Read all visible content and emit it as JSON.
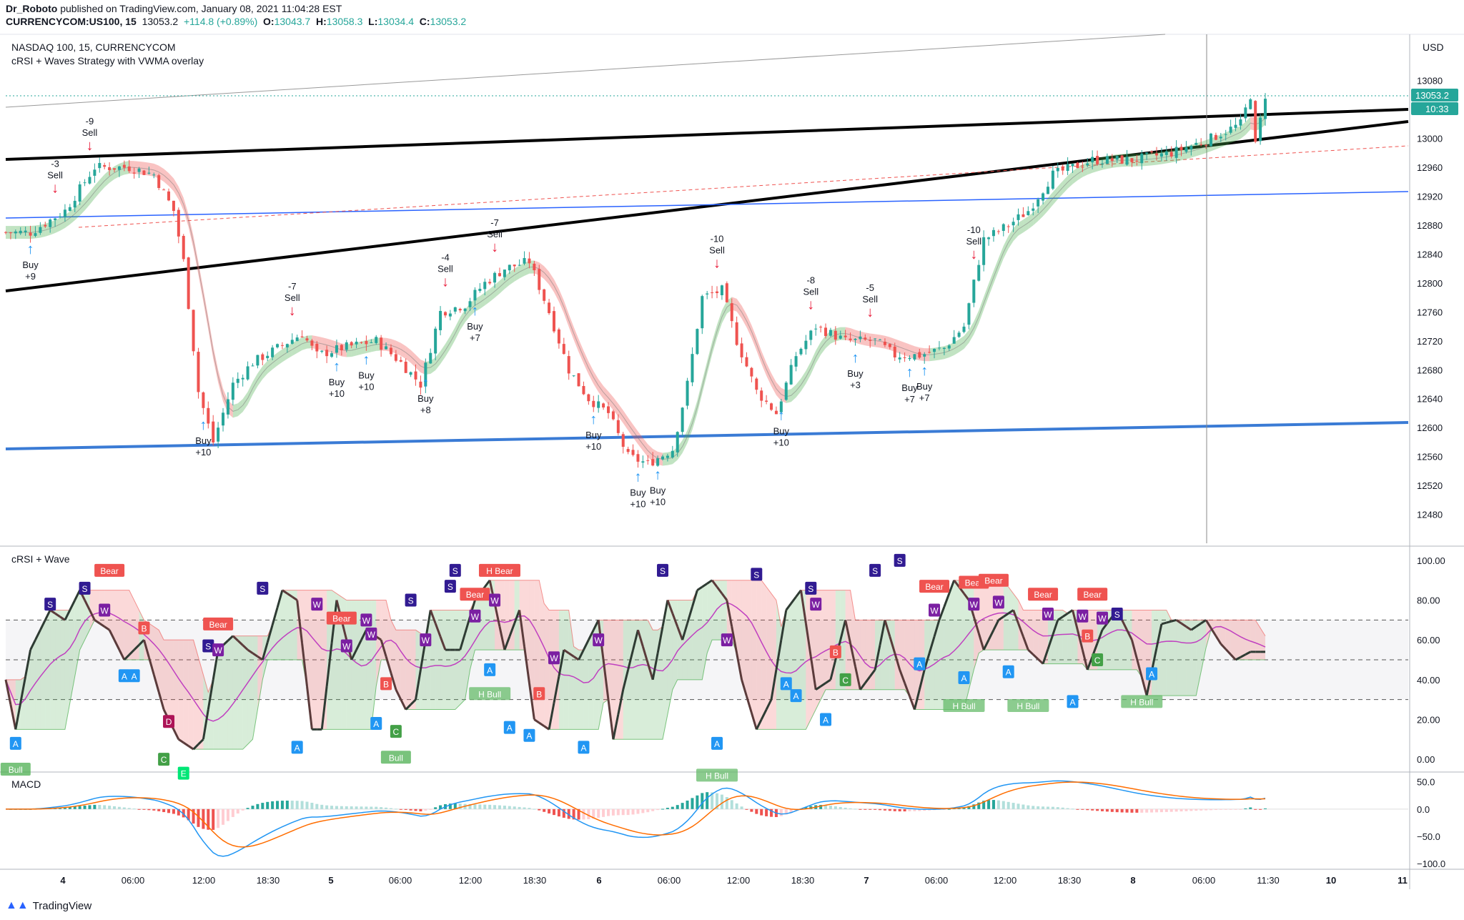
{
  "header": {
    "line1_user": "Dr_Roboto",
    "line1_rest": " published on TradingView.com, January 08, 2021 11:04:28 EST",
    "symbol": "CURRENCYCOM:US100, 15",
    "price": "13053.2",
    "change": "+114.8 (+0.89%)",
    "o_label": "O:",
    "o": "13043.7",
    "h_label": "H:",
    "h": "13058.3",
    "l_label": "L:",
    "l": "13034.4",
    "c_label": "C:",
    "c": "13053.2"
  },
  "main_pane": {
    "title": "NASDAQ 100, 15, CURRENCYCOM",
    "subtitle": "cRSI + Waves Strategy with VWMA overlay",
    "currency": "USD",
    "price_tag": "13053.2",
    "time_tag": "10:33"
  },
  "crsi_pane": {
    "title": "cRSI + Wave"
  },
  "macd_pane": {
    "title": "MACD"
  },
  "footer": {
    "brand": "TradingView"
  },
  "colors": {
    "up": "#26a69a",
    "down": "#ef5350",
    "blue": "#2962ff",
    "crsi": "#333333",
    "ma": "#c040c0"
  },
  "chart_data": [
    {
      "type": "candlestick",
      "title": "NASDAQ 100, 15, CURRENCYCOM",
      "y_ticks": [
        13080,
        13040,
        13000,
        12960,
        12920,
        12880,
        12840,
        12800,
        12760,
        12720,
        12680,
        12640,
        12600,
        12560,
        12520,
        12480
      ],
      "ylim": [
        12440,
        13140
      ],
      "x_ticks": [
        "4",
        "06:00",
        "12:00",
        "18:30",
        "5",
        "06:00",
        "12:00",
        "18:30",
        "6",
        "06:00",
        "12:00",
        "18:30",
        "7",
        "06:00",
        "12:00",
        "18:30",
        "8",
        "06:00",
        "11:30",
        "10",
        "11"
      ],
      "close_path": [
        [
          0,
          12870
        ],
        [
          5,
          12870
        ],
        [
          12,
          12900
        ],
        [
          18,
          12960
        ],
        [
          25,
          12960
        ],
        [
          30,
          12950
        ],
        [
          34,
          12900
        ],
        [
          36,
          12830
        ],
        [
          39,
          12650
        ],
        [
          42,
          12580
        ],
        [
          46,
          12660
        ],
        [
          50,
          12690
        ],
        [
          55,
          12710
        ],
        [
          60,
          12730
        ],
        [
          63,
          12700
        ],
        [
          68,
          12710
        ],
        [
          75,
          12720
        ],
        [
          80,
          12690
        ],
        [
          84,
          12660
        ],
        [
          88,
          12760
        ],
        [
          93,
          12770
        ],
        [
          97,
          12800
        ],
        [
          101,
          12820
        ],
        [
          106,
          12830
        ],
        [
          110,
          12760
        ],
        [
          114,
          12680
        ],
        [
          118,
          12640
        ],
        [
          122,
          12620
        ],
        [
          126,
          12560
        ],
        [
          130,
          12550
        ],
        [
          135,
          12570
        ],
        [
          138,
          12660
        ],
        [
          141,
          12780
        ],
        [
          145,
          12790
        ],
        [
          148,
          12720
        ],
        [
          152,
          12650
        ],
        [
          156,
          12620
        ],
        [
          160,
          12700
        ],
        [
          164,
          12740
        ],
        [
          170,
          12720
        ],
        [
          176,
          12720
        ],
        [
          180,
          12700
        ],
        [
          185,
          12700
        ],
        [
          190,
          12710
        ],
        [
          194,
          12740
        ],
        [
          198,
          12860
        ],
        [
          203,
          12880
        ],
        [
          207,
          12900
        ],
        [
          212,
          12950
        ],
        [
          220,
          12970
        ],
        [
          228,
          12970
        ],
        [
          236,
          12980
        ],
        [
          244,
          13000
        ],
        [
          250,
          13020
        ],
        [
          252,
          13060
        ],
        [
          253,
          12990
        ],
        [
          255,
          13060
        ]
      ],
      "signals": [
        {
          "label": "Buy",
          "value": "+9",
          "x": 5,
          "kind": "buy"
        },
        {
          "label": "Sell",
          "value": "-3",
          "x": 10,
          "kind": "sell"
        },
        {
          "label": "Sell",
          "value": "-9",
          "x": 17,
          "kind": "sell"
        },
        {
          "label": "Buy",
          "value": "+10",
          "x": 40,
          "kind": "buy"
        },
        {
          "label": "Sell",
          "value": "-7",
          "x": 58,
          "kind": "sell"
        },
        {
          "label": "Buy",
          "value": "+10",
          "x": 67,
          "kind": "buy"
        },
        {
          "label": "Buy",
          "value": "+10",
          "x": 73,
          "kind": "buy"
        },
        {
          "label": "Buy",
          "value": "+8",
          "x": 85,
          "kind": "buy"
        },
        {
          "label": "Sell",
          "value": "-4",
          "x": 89,
          "kind": "sell"
        },
        {
          "label": "Buy",
          "value": "+7",
          "x": 95,
          "kind": "buy"
        },
        {
          "label": "Sell",
          "value": "-7",
          "x": 99,
          "kind": "sell"
        },
        {
          "label": "Buy",
          "value": "+10",
          "x": 119,
          "kind": "buy"
        },
        {
          "label": "Buy",
          "value": "+10",
          "x": 128,
          "kind": "buy"
        },
        {
          "label": "Buy",
          "value": "+10",
          "x": 132,
          "kind": "buy"
        },
        {
          "label": "Sell",
          "value": "-10",
          "x": 144,
          "kind": "sell"
        },
        {
          "label": "Buy",
          "value": "+10",
          "x": 157,
          "kind": "buy"
        },
        {
          "label": "Sell",
          "value": "-8",
          "x": 163,
          "kind": "sell"
        },
        {
          "label": "Buy",
          "value": "+3",
          "x": 172,
          "kind": "buy"
        },
        {
          "label": "Sell",
          "value": "-5",
          "x": 175,
          "kind": "sell"
        },
        {
          "label": "Buy",
          "value": "+7",
          "x": 183,
          "kind": "buy"
        },
        {
          "label": "Buy",
          "value": "+7",
          "x": 186,
          "kind": "buy"
        },
        {
          "label": "Sell",
          "value": "-10",
          "x": 196,
          "kind": "sell"
        }
      ]
    },
    {
      "type": "line",
      "title": "cRSI + Wave",
      "y_ticks": [
        "100.00",
        "80.00",
        "60.00",
        "40.00",
        "20.00",
        "0.00"
      ],
      "ylim": [
        -5,
        105
      ],
      "levels": [
        70,
        50,
        30
      ],
      "crsi_path": [
        [
          0,
          40
        ],
        [
          2,
          15
        ],
        [
          5,
          55
        ],
        [
          9,
          75
        ],
        [
          12,
          70
        ],
        [
          15,
          85
        ],
        [
          18,
          70
        ],
        [
          21,
          65
        ],
        [
          24,
          50
        ],
        [
          28,
          60
        ],
        [
          32,
          25
        ],
        [
          35,
          10
        ],
        [
          38,
          5
        ],
        [
          40,
          10
        ],
        [
          43,
          55
        ],
        [
          46,
          62
        ],
        [
          49,
          55
        ],
        [
          52,
          50
        ],
        [
          56,
          85
        ],
        [
          59,
          80
        ],
        [
          62,
          15
        ],
        [
          64,
          15
        ],
        [
          67,
          80
        ],
        [
          70,
          50
        ],
        [
          73,
          65
        ],
        [
          76,
          60
        ],
        [
          79,
          35
        ],
        [
          81,
          25
        ],
        [
          83,
          30
        ],
        [
          86,
          75
        ],
        [
          89,
          55
        ],
        [
          92,
          55
        ],
        [
          95,
          80
        ],
        [
          98,
          90
        ],
        [
          101,
          55
        ],
        [
          104,
          75
        ],
        [
          107,
          20
        ],
        [
          110,
          15
        ],
        [
          113,
          55
        ],
        [
          116,
          50
        ],
        [
          120,
          70
        ],
        [
          123,
          10
        ],
        [
          125,
          35
        ],
        [
          128,
          65
        ],
        [
          131,
          40
        ],
        [
          134,
          80
        ],
        [
          137,
          60
        ],
        [
          140,
          85
        ],
        [
          143,
          90
        ],
        [
          146,
          80
        ],
        [
          149,
          40
        ],
        [
          152,
          15
        ],
        [
          155,
          30
        ],
        [
          158,
          75
        ],
        [
          161,
          85
        ],
        [
          164,
          35
        ],
        [
          167,
          40
        ],
        [
          170,
          70
        ],
        [
          173,
          35
        ],
        [
          176,
          45
        ],
        [
          178,
          70
        ],
        [
          181,
          45
        ],
        [
          184,
          25
        ],
        [
          186,
          45
        ],
        [
          189,
          70
        ],
        [
          192,
          90
        ],
        [
          195,
          80
        ],
        [
          198,
          55
        ],
        [
          201,
          70
        ],
        [
          204,
          75
        ],
        [
          207,
          55
        ],
        [
          210,
          48
        ],
        [
          213,
          70
        ],
        [
          216,
          75
        ],
        [
          219,
          45
        ],
        [
          222,
          65
        ],
        [
          225,
          75
        ],
        [
          228,
          60
        ],
        [
          231,
          32
        ],
        [
          234,
          68
        ],
        [
          237,
          70
        ],
        [
          240,
          65
        ],
        [
          243,
          70
        ],
        [
          246,
          58
        ],
        [
          249,
          50
        ],
        [
          252,
          54
        ]
      ],
      "labels": [
        {
          "text": "S",
          "x": 16,
          "y": 86
        },
        {
          "text": "Bear",
          "x": 21,
          "y": 95
        },
        {
          "text": "W",
          "x": 20,
          "y": 75
        },
        {
          "text": "S",
          "x": 9,
          "y": 78
        },
        {
          "text": "A",
          "x": 2,
          "y": 8
        },
        {
          "text": "Bull",
          "x": 2,
          "y": -5
        },
        {
          "text": "B",
          "x": 28,
          "y": 66
        },
        {
          "text": "A",
          "x": 24,
          "y": 42
        },
        {
          "text": "A",
          "x": 26,
          "y": 42
        },
        {
          "text": "D",
          "x": 33,
          "y": 19
        },
        {
          "text": "C",
          "x": 32,
          "y": 0
        },
        {
          "text": "E",
          "x": 36,
          "y": -7
        },
        {
          "text": "Bear",
          "x": 43,
          "y": 68
        },
        {
          "text": "S",
          "x": 41,
          "y": 57
        },
        {
          "text": "W",
          "x": 43,
          "y": 55
        },
        {
          "text": "S",
          "x": 52,
          "y": 86
        },
        {
          "text": "A",
          "x": 59,
          "y": 6
        },
        {
          "text": "W",
          "x": 63,
          "y": 78
        },
        {
          "text": "Bear",
          "x": 68,
          "y": 71
        },
        {
          "text": "W",
          "x": 73,
          "y": 70
        },
        {
          "text": "W",
          "x": 69,
          "y": 57
        },
        {
          "text": "W",
          "x": 74,
          "y": 63
        },
        {
          "text": "B",
          "x": 77,
          "y": 38
        },
        {
          "text": "A",
          "x": 75,
          "y": 18
        },
        {
          "text": "C",
          "x": 79,
          "y": 14
        },
        {
          "text": "Bull",
          "x": 79,
          "y": 1
        },
        {
          "text": "S",
          "x": 82,
          "y": 80
        },
        {
          "text": "W",
          "x": 85,
          "y": 60
        },
        {
          "text": "S",
          "x": 90,
          "y": 87
        },
        {
          "text": "W",
          "x": 95,
          "y": 72
        },
        {
          "text": "H Bear",
          "x": 100,
          "y": 95
        },
        {
          "text": "Bear",
          "x": 95,
          "y": 83
        },
        {
          "text": "W",
          "x": 99,
          "y": 80
        },
        {
          "text": "S",
          "x": 91,
          "y": 95
        },
        {
          "text": "A",
          "x": 98,
          "y": 45
        },
        {
          "text": "H Bull",
          "x": 98,
          "y": 33
        },
        {
          "text": "B",
          "x": 108,
          "y": 33
        },
        {
          "text": "A",
          "x": 102,
          "y": 16
        },
        {
          "text": "A",
          "x": 106,
          "y": 12
        },
        {
          "text": "W",
          "x": 111,
          "y": 51
        },
        {
          "text": "W",
          "x": 120,
          "y": 60
        },
        {
          "text": "A",
          "x": 117,
          "y": 6
        },
        {
          "text": "S",
          "x": 133,
          "y": 95
        },
        {
          "text": "W",
          "x": 146,
          "y": 60
        },
        {
          "text": "S",
          "x": 152,
          "y": 93
        },
        {
          "text": "A",
          "x": 144,
          "y": 8
        },
        {
          "text": "H Bull",
          "x": 144,
          "y": -8
        },
        {
          "text": "W",
          "x": 164,
          "y": 78
        },
        {
          "text": "S",
          "x": 163,
          "y": 86
        },
        {
          "text": "A",
          "x": 158,
          "y": 38
        },
        {
          "text": "A",
          "x": 160,
          "y": 32
        },
        {
          "text": "B",
          "x": 168,
          "y": 54
        },
        {
          "text": "C",
          "x": 170,
          "y": 40
        },
        {
          "text": "S",
          "x": 176,
          "y": 95
        },
        {
          "text": "A",
          "x": 166,
          "y": 20
        },
        {
          "text": "Bear",
          "x": 188,
          "y": 87
        },
        {
          "text": "S",
          "x": 181,
          "y": 100
        },
        {
          "text": "W",
          "x": 188,
          "y": 75
        },
        {
          "text": "A",
          "x": 185,
          "y": 48
        },
        {
          "text": "Bear",
          "x": 196,
          "y": 89
        },
        {
          "text": "W",
          "x": 196,
          "y": 78
        },
        {
          "text": "Bear",
          "x": 200,
          "y": 90
        },
        {
          "text": "W",
          "x": 201,
          "y": 79
        },
        {
          "text": "A",
          "x": 194,
          "y": 41
        },
        {
          "text": "H Bull",
          "x": 194,
          "y": 27
        },
        {
          "text": "A",
          "x": 203,
          "y": 44
        },
        {
          "text": "H Bull",
          "x": 207,
          "y": 27
        },
        {
          "text": "Bear",
          "x": 210,
          "y": 83
        },
        {
          "text": "W",
          "x": 211,
          "y": 73
        },
        {
          "text": "W",
          "x": 218,
          "y": 72
        },
        {
          "text": "Bear",
          "x": 220,
          "y": 83
        },
        {
          "text": "W",
          "x": 222,
          "y": 71
        },
        {
          "text": "S",
          "x": 225,
          "y": 73
        },
        {
          "text": "B",
          "x": 219,
          "y": 62
        },
        {
          "text": "C",
          "x": 221,
          "y": 50
        },
        {
          "text": "A",
          "x": 216,
          "y": 29
        },
        {
          "text": "A",
          "x": 232,
          "y": 43
        },
        {
          "text": "H Bull",
          "x": 230,
          "y": 29
        }
      ]
    },
    {
      "type": "bar",
      "title": "MACD",
      "y_ticks": [
        "50.0",
        "0.0",
        "−50.0",
        "−100.0"
      ],
      "ylim": [
        -105,
        60
      ]
    }
  ]
}
